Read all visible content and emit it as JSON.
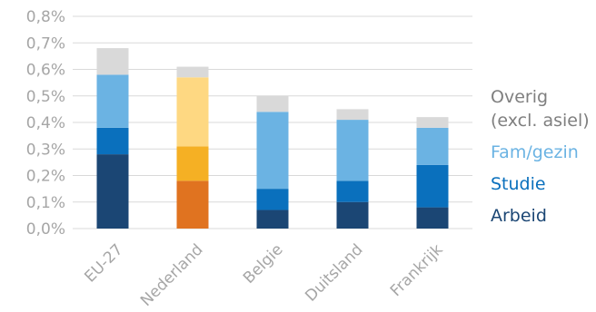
{
  "chart_data": {
    "type": "bar",
    "stacked": true,
    "title": "",
    "xlabel": "",
    "ylabel": "",
    "ylim": [
      0,
      0.8
    ],
    "yticks": [
      "0,0%",
      "0,1%",
      "0,2%",
      "0,3%",
      "0,4%",
      "0,5%",
      "0,6%",
      "0,7%",
      "0,8%"
    ],
    "grid": true,
    "legend_position": "right",
    "categories": [
      "EU-27",
      "Nederland",
      "Belgie",
      "Duitsland",
      "Frankrijk"
    ],
    "series": [
      {
        "name": "Arbeid",
        "values": [
          0.28,
          0.18,
          0.07,
          0.1,
          0.08
        ],
        "colors": [
          "#1b4674",
          "#e07320",
          "#1b4674",
          "#1b4674",
          "#1b4674"
        ]
      },
      {
        "name": "Studie",
        "values": [
          0.1,
          0.13,
          0.08,
          0.08,
          0.16
        ],
        "colors": [
          "#0a70bd",
          "#f5b024",
          "#0a70bd",
          "#0a70bd",
          "#0a70bd"
        ]
      },
      {
        "name": "Fam/gezin",
        "values": [
          0.2,
          0.26,
          0.29,
          0.23,
          0.14
        ],
        "colors": [
          "#6bb3e3",
          "#fed882",
          "#6bb3e3",
          "#6bb3e3",
          "#6bb3e3"
        ]
      },
      {
        "name": "Overig (excl. asiel)",
        "name_lines": [
          "Overig",
          "(excl. asiel)"
        ],
        "values": [
          0.1,
          0.04,
          0.06,
          0.04,
          0.04
        ],
        "colors": [
          "#d9d9d9",
          "#d9d9d9",
          "#d9d9d9",
          "#d9d9d9",
          "#d9d9d9"
        ]
      }
    ],
    "legend_colors": {
      "Overig (excl. asiel)": "#7f7f7f",
      "Fam/gezin": "#6bb3e3",
      "Studie": "#0a70bd",
      "Arbeid": "#1b4674"
    }
  }
}
